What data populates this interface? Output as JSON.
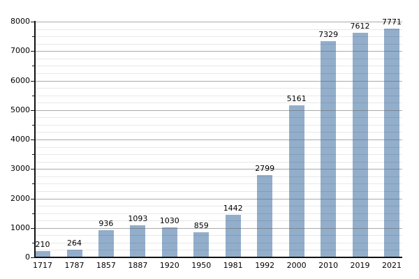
{
  "chart_data": {
    "type": "bar",
    "title": "",
    "xlabel": "",
    "ylabel": "",
    "categories": [
      "1717",
      "1787",
      "1857",
      "1887",
      "1920",
      "1950",
      "1981",
      "1992",
      "2000",
      "2010",
      "2019",
      "2021"
    ],
    "values": [
      210,
      264,
      936,
      1093,
      1030,
      859,
      1442,
      2799,
      5161,
      7329,
      7612,
      7771
    ],
    "bar_value_labels": [
      "210",
      "264",
      "936",
      "1093",
      "1030",
      "859",
      "1442",
      "2799",
      "5161",
      "7329",
      "7612",
      "7771"
    ],
    "ylim": [
      0,
      8000
    ],
    "y_major_tick_interval": 1000,
    "y_minor_tick_interval": 500,
    "y_minor_grid_interval": 250,
    "y_tick_labels": [
      "0",
      "1000",
      "2000",
      "3000",
      "4000",
      "5000",
      "6000",
      "7000",
      "8000"
    ],
    "grid": true,
    "legend": false,
    "colors": {
      "bar_fill": "#92aecb",
      "major_gridline": "rgba(100,100,100,0.55)",
      "minor_gridline": "rgba(0,0,0,0.09)",
      "axis": "#111111",
      "text": "#000000",
      "background": "#ffffff"
    }
  }
}
